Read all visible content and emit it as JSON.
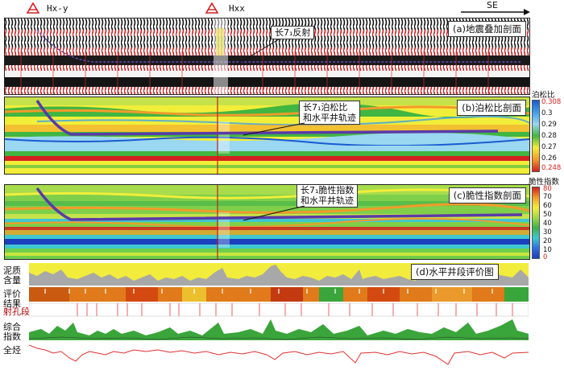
{
  "header": {
    "wells": [
      "Hx-y",
      "Hxx"
    ],
    "direction": "SE"
  },
  "panels": {
    "a": {
      "title": "(a)地震叠加剖面",
      "callout": "长7₁反射"
    },
    "b": {
      "title": "(b)泊松比剖面",
      "callout_line1": "长7₁泊松比",
      "callout_line2": "和水平井轨迹",
      "scale_title": "泊松比",
      "scale_ticks": [
        "0.308",
        "0.3",
        "0.29",
        "0.28",
        "0.27",
        "0.26",
        "0.248"
      ]
    },
    "c": {
      "title": "(c)脆性指数剖面",
      "callout_line1": "长7₁脆性指数",
      "callout_line2": "和水平井轨迹",
      "scale_title": "脆性指数",
      "scale_ticks": [
        "80",
        "70",
        "60",
        "50",
        "40",
        "30",
        "20",
        "10",
        "0"
      ]
    },
    "d": {
      "title": "(d)水平井段评价图",
      "tracks": {
        "mud_l1": "泥质",
        "mud_l2": "含量",
        "eval_l1": "评价",
        "eval_l2": "结果",
        "perf": "射孔段",
        "comp_l1": "综合",
        "comp_l2": "指数",
        "gas": "全烃"
      }
    }
  },
  "colors": {
    "seismic_red": "#c42020",
    "seismic_black": "#111111",
    "trajectory": "#5a3aa8",
    "poisson_scale": [
      "#1a5bd0",
      "#3fa0e8",
      "#9ad7f0",
      "#41b641",
      "#f1ee3a",
      "#f39a2a",
      "#d42020"
    ],
    "brittle_scale": [
      "#d42020",
      "#f39a2a",
      "#f1ee3a",
      "#9fd84a",
      "#3fb04a",
      "#3fc7d0",
      "#2f6fe0",
      "#1a3fbf"
    ],
    "mud_yellow": "#f2ec3c",
    "mud_gray": "#a8a8a8",
    "perf_red": "#e33b3b",
    "composite_green": "#3aa53a",
    "gas_red": "#e03030"
  }
}
